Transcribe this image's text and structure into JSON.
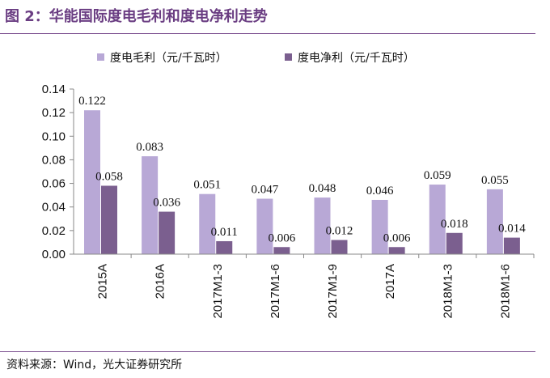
{
  "figure": {
    "title": "图 2：华能国际度电毛利和度电净利走势",
    "source": "资料来源：Wind，光大证券研究所"
  },
  "colors": {
    "title": "#6a3d82",
    "series1": "#b8a8d6",
    "series2": "#7b5f8f",
    "rule": "#7a4d8e"
  },
  "chart_data": {
    "type": "bar",
    "categories": [
      "2015A",
      "2016A",
      "2017M1-3",
      "2017M1-6",
      "2017M1-9",
      "2017A",
      "2018M1-3",
      "2018M1-6"
    ],
    "series": [
      {
        "name": "度电毛利（元/千瓦时）",
        "values": [
          0.122,
          0.083,
          0.051,
          0.047,
          0.048,
          0.046,
          0.059,
          0.055
        ]
      },
      {
        "name": "度电净利（元/千瓦时）",
        "values": [
          0.058,
          0.036,
          0.011,
          0.006,
          0.012,
          0.006,
          0.018,
          0.014
        ]
      }
    ],
    "y_ticks": [
      "0.00",
      "0.02",
      "0.04",
      "0.06",
      "0.08",
      "0.10",
      "0.12",
      "0.14"
    ],
    "ylim": [
      0,
      0.14
    ],
    "grid": false,
    "legend_position": "top"
  }
}
